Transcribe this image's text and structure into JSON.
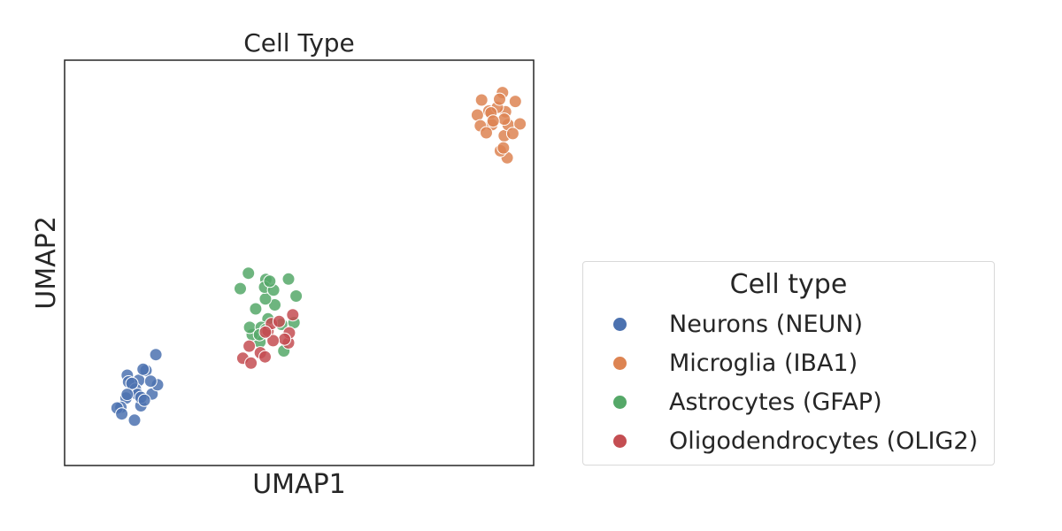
{
  "chart_data": {
    "type": "scatter",
    "title": "Cell Type",
    "xlabel": "UMAP1",
    "ylabel": "UMAP2",
    "xlim": [
      -0.5,
      10.5
    ],
    "ylim": [
      -0.5,
      10.5
    ],
    "grid": false,
    "ticks": false,
    "legend": {
      "title": "Cell type",
      "placement": "outside-right"
    },
    "series": [
      {
        "name": "Neurons (NEUN)",
        "color": "#4c72b0",
        "x": [
          1.64,
          1.55,
          0.94,
          1.24,
          0.97,
          1.41,
          1.34,
          0.82,
          1.68,
          1.52,
          1.0,
          1.16,
          1.21,
          0.73,
          1.29,
          1.08,
          0.97,
          1.29,
          1.37,
          1.14,
          0.84
        ],
        "y": [
          2.51,
          1.44,
          1.33,
          1.81,
          1.95,
          2.08,
          2.11,
          1.08,
          1.69,
          1.79,
          1.77,
          1.57,
          1.43,
          1.06,
          1.12,
          1.73,
          1.43,
          1.35,
          1.27,
          0.73,
          0.9
        ]
      },
      {
        "name": "Microglia (IBA1)",
        "color": "#dd8452",
        "x": [
          9.45,
          9.18,
          9.88,
          9.72,
          9.81,
          9.52,
          9.84,
          9.28,
          9.65,
          9.5,
          9.9,
          9.25,
          10.18,
          9.79,
          9.39,
          10.07,
          9.81,
          9.77,
          9.7,
          10.01,
          9.55
        ],
        "y": [
          9.12,
          9.01,
          7.85,
          8.04,
          8.45,
          8.75,
          9.1,
          9.42,
          9.22,
          9.07,
          8.75,
          8.72,
          8.77,
          8.12,
          8.53,
          9.38,
          8.9,
          9.62,
          9.44,
          8.51,
          8.85
        ]
      },
      {
        "name": "Astrocytes (GFAP)",
        "color": "#55a868",
        "x": [
          4.22,
          4.43,
          4.08,
          4.27,
          3.81,
          4.21,
          4.59,
          4.88,
          4.19,
          3.98,
          3.62,
          4.75,
          3.9,
          3.84,
          4.4,
          4.93,
          4.31,
          4.11,
          4.64,
          4.07,
          4.22
        ],
        "y": [
          4.55,
          3.86,
          2.85,
          3.48,
          4.72,
          4.02,
          3.33,
          3.38,
          4.34,
          3.75,
          4.3,
          4.56,
          3.05,
          3.25,
          4.26,
          4.1,
          4.5,
          3.25,
          2.61,
          3.05,
          3.19
        ],
        "also": [
          4.48,
          2.54,
          4.78,
          4.22,
          2.66,
          4.07,
          2.99
        ]
      },
      {
        "name": "Oligodendrocytes (OLIG2)",
        "color": "#c44e52",
        "x": [
          4.27,
          4.09,
          4.85,
          4.75,
          3.68,
          4.35,
          4.53,
          4.77,
          3.83,
          4.2,
          4.66,
          4.39,
          3.87,
          4.21
        ],
        "y": [
          3.15,
          2.56,
          3.59,
          2.83,
          2.41,
          3.35,
          3.41,
          3.1,
          2.74,
          2.45,
          2.93,
          2.89,
          2.28,
          3.12
        ]
      }
    ]
  }
}
